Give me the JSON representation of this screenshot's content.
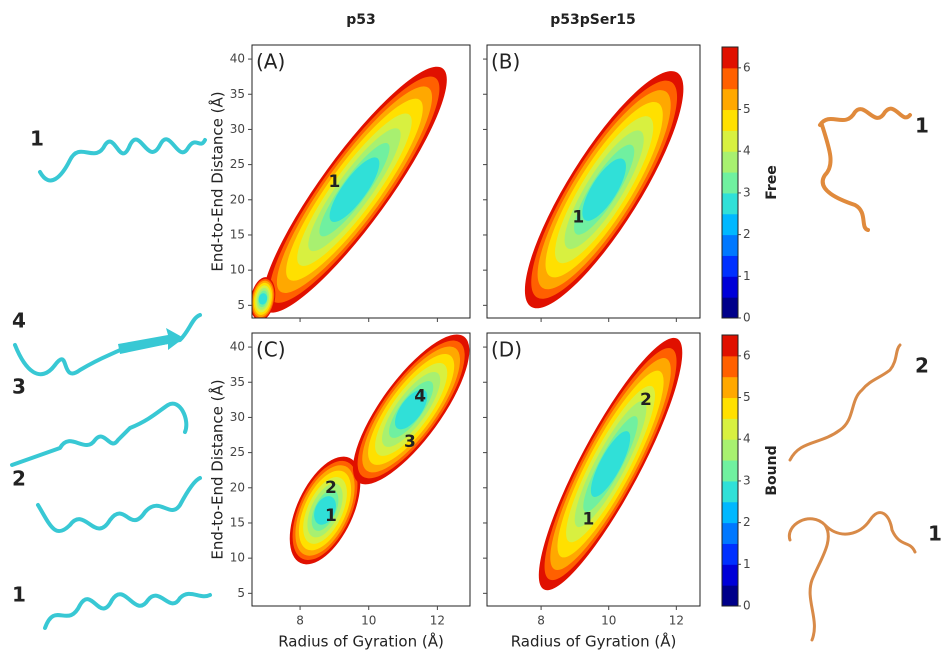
{
  "column_titles": [
    "p53",
    "p53pSer15"
  ],
  "chart_data": [
    {
      "type": "heatmap",
      "label": "(A)",
      "xlim": [
        6.6,
        12.95
      ],
      "xticks": [
        8,
        10,
        12
      ],
      "show_xtick_labels": false,
      "ylim": [
        3.2,
        42
      ],
      "yticks": [
        5,
        10,
        15,
        20,
        25,
        30,
        35,
        40
      ],
      "show_ytick_labels": true,
      "y_label": "End-to-End Distance (Å)",
      "states": [
        {
          "label": "1",
          "x": 9.0,
          "y": 22.5
        }
      ]
    },
    {
      "type": "heatmap",
      "label": "(B)",
      "xlim": [
        6.4,
        12.7
      ],
      "xticks": [
        8,
        10,
        12
      ],
      "show_xtick_labels": false,
      "ylim": [
        3.2,
        42
      ],
      "yticks": [
        5,
        10,
        15,
        20,
        25,
        30,
        35,
        40
      ],
      "show_ytick_labels": false,
      "states": [
        {
          "label": "1",
          "x": 9.1,
          "y": 17.5
        }
      ]
    },
    {
      "type": "heatmap",
      "label": "(C)",
      "xlim": [
        6.6,
        12.95
      ],
      "xticks": [
        8,
        10,
        12
      ],
      "show_xtick_labels": true,
      "x_label": "Radius of Gyration (Å)",
      "ylim": [
        3.2,
        42
      ],
      "yticks": [
        5,
        10,
        15,
        20,
        25,
        30,
        35,
        40
      ],
      "show_ytick_labels": true,
      "y_label": "End-to-End Distance (Å)",
      "states": [
        {
          "label": "2",
          "x": 8.9,
          "y": 20
        },
        {
          "label": "1",
          "x": 8.9,
          "y": 16
        },
        {
          "label": "3",
          "x": 11.2,
          "y": 26.5
        },
        {
          "label": "4",
          "x": 11.5,
          "y": 33
        }
      ]
    },
    {
      "type": "heatmap",
      "label": "(D)",
      "xlim": [
        6.4,
        12.7
      ],
      "xticks": [
        8,
        10,
        12
      ],
      "show_xtick_labels": true,
      "x_label": "Radius of Gyration (Å)",
      "ylim": [
        3.2,
        42
      ],
      "yticks": [
        5,
        10,
        15,
        20,
        25,
        30,
        35,
        40
      ],
      "show_ytick_labels": false,
      "states": [
        {
          "label": "1",
          "x": 9.4,
          "y": 15.5
        },
        {
          "label": "2",
          "x": 11.1,
          "y": 32.5
        }
      ]
    }
  ],
  "colorbars": [
    {
      "label": "Free",
      "lim": [
        0,
        6.5
      ],
      "ticks": [
        0,
        1,
        2,
        3,
        4,
        5,
        6
      ],
      "colors": [
        "#00008a",
        "#0000d8",
        "#0030ff",
        "#0078ff",
        "#00b8ff",
        "#30e0d8",
        "#70f0a0",
        "#a8f070",
        "#d8f040",
        "#ffe000",
        "#ffa800",
        "#ff6000",
        "#e01000"
      ]
    },
    {
      "label": "Bound",
      "lim": [
        0,
        6.5
      ],
      "ticks": [
        0,
        1,
        2,
        3,
        4,
        5,
        6
      ],
      "colors": [
        "#00008a",
        "#0000d8",
        "#0030ff",
        "#0078ff",
        "#00b8ff",
        "#30e0d8",
        "#70f0a0",
        "#a8f070",
        "#d8f040",
        "#ffe000",
        "#ffa800",
        "#ff6000",
        "#e01000"
      ]
    }
  ],
  "structures": {
    "left": [
      "1",
      "4",
      "3",
      "2",
      "1"
    ],
    "right": [
      "1",
      "2",
      "1"
    ]
  }
}
